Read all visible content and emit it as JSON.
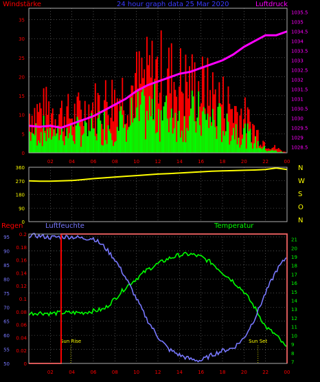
{
  "colors": {
    "background": "#000000",
    "axis": "#b0b0b0",
    "grid": "#808080",
    "wind_title": "#ff0000",
    "wind_gust": "#ff0000",
    "wind_avg": "#00ff00",
    "date_title": "#3a3aff",
    "pressure": "#ff00ff",
    "direction": "#ffff00",
    "rain": "#ff0000",
    "humidity": "#7878ff",
    "temperature": "#00ff00",
    "sun": "#ffff00",
    "dir_letters": "#ffff00"
  },
  "labels": {
    "wind": "Windstärke",
    "date": "24 hour graph data  25 Mar 2020",
    "pressure": "Luftdruck",
    "rain": "Regen",
    "humidity": "Luftfeuchte",
    "temperature": "Temperatur",
    "sun_rise": "Sun Rise",
    "sun_set": "Sun Set",
    "dir_n": "N",
    "dir_w": "W",
    "dir_s": "S",
    "dir_o": "O",
    "dir_n2": "N"
  },
  "chart_data": [
    {
      "type": "bar",
      "x_ticks": [
        "02",
        "04",
        "06",
        "08",
        "10",
        "12",
        "14",
        "16",
        "18",
        "20",
        "22",
        "00"
      ],
      "y_ticks_left": [
        0,
        5,
        10,
        15,
        20,
        25,
        30,
        35
      ],
      "y_ticks_right": [
        1028.5,
        1029,
        1029.5,
        1030,
        1030.5,
        1031,
        1031.5,
        1032,
        1032.5,
        1033,
        1033.5,
        1034,
        1034.5,
        1035,
        1035.5
      ],
      "wind_range": [
        0,
        38
      ],
      "pressure_range": [
        1028.2,
        1035.7
      ],
      "wind_hour_x": [
        0,
        2,
        4,
        6,
        8,
        10,
        12,
        14,
        16,
        18,
        20,
        22,
        24
      ],
      "wind_avg": [
        6,
        7,
        6,
        8,
        9,
        11,
        13,
        12,
        11,
        9,
        6,
        1,
        0
      ],
      "wind_gust": [
        13,
        14,
        12,
        15,
        18,
        22,
        26,
        23,
        21,
        17,
        12,
        3,
        0
      ],
      "pressure": {
        "x": [
          0,
          1,
          2,
          3,
          4,
          5,
          6,
          7,
          8,
          9,
          10,
          11,
          12,
          13,
          14,
          15,
          16,
          17,
          18,
          19,
          20,
          21,
          22,
          23,
          24
        ],
        "y": [
          1029.6,
          1029.55,
          1029.6,
          1029.5,
          1029.7,
          1029.9,
          1030.1,
          1030.4,
          1030.7,
          1031.0,
          1031.4,
          1031.7,
          1031.9,
          1032.1,
          1032.3,
          1032.4,
          1032.6,
          1032.8,
          1033.0,
          1033.3,
          1033.7,
          1034.0,
          1034.3,
          1034.3,
          1034.5
        ]
      }
    },
    {
      "type": "line",
      "y_ticks": [
        0,
        90,
        180,
        270,
        360
      ],
      "ylim": [
        0,
        360
      ],
      "x": [
        0,
        1,
        2,
        3,
        4,
        5,
        6,
        7,
        8,
        9,
        10,
        11,
        12,
        13,
        14,
        15,
        16,
        17,
        18,
        19,
        20,
        21,
        22,
        23,
        23.5,
        24
      ],
      "direction": [
        270,
        268,
        268,
        270,
        272,
        278,
        285,
        290,
        295,
        300,
        305,
        310,
        315,
        318,
        322,
        326,
        330,
        334,
        336,
        338,
        340,
        342,
        345,
        355,
        350,
        345
      ],
      "x_ticks": [
        "02",
        "04",
        "06",
        "08",
        "10",
        "12",
        "14",
        "16",
        "18",
        "20",
        "22",
        "00"
      ]
    },
    {
      "type": "line",
      "x_ticks": [
        "02",
        "04",
        "06",
        "08",
        "10",
        "12",
        "14",
        "16",
        "18",
        "20",
        "22",
        "00"
      ],
      "y_ticks_rain": [
        0,
        0.02,
        0.04,
        0.06,
        0.08,
        0.1,
        0.12,
        0.14,
        0.16,
        0.18,
        0.2
      ],
      "y_ticks_humidity": [
        50,
        55,
        60,
        65,
        70,
        75,
        80,
        85,
        90,
        95
      ],
      "y_ticks_temperature": [
        7,
        8,
        9,
        10,
        11,
        12,
        13,
        14,
        15,
        16,
        17,
        18,
        19,
        20,
        21
      ],
      "rain_range": [
        0,
        0.2
      ],
      "humidity_range": [
        50,
        96
      ],
      "temperature_range": [
        6.8,
        21.6
      ],
      "x": [
        0,
        1,
        2,
        3,
        4,
        5,
        6,
        7,
        8,
        9,
        10,
        11,
        12,
        13,
        14,
        15,
        16,
        17,
        18,
        19,
        20,
        21,
        22,
        23,
        24
      ],
      "rain": [
        0,
        0,
        0,
        0.2,
        0.2,
        0.2,
        0.2,
        0.2,
        0.2,
        0.2,
        0.2,
        0.2,
        0.2,
        0.2,
        0.2,
        0.2,
        0.2,
        0.2,
        0.2,
        0.2,
        0.2,
        0.2,
        0.2,
        0.2,
        0
      ],
      "humidity": [
        95.5,
        95.3,
        94.8,
        95.0,
        95.0,
        94.5,
        94.5,
        91.5,
        87.0,
        80.5,
        73.0,
        65.5,
        59.5,
        55.0,
        53.0,
        51.5,
        51.0,
        53.0,
        54.5,
        55.5,
        59.0,
        66.0,
        75.0,
        83.0,
        88.0
      ],
      "temperature": [
        12.5,
        12.6,
        12.5,
        12.6,
        12.6,
        12.6,
        12.8,
        13.0,
        14.2,
        15.5,
        16.5,
        17.5,
        18.2,
        18.8,
        19.2,
        19.3,
        19.0,
        18.3,
        17.2,
        16.2,
        15.0,
        13.2,
        11.0,
        10.0,
        8.5
      ],
      "sun_rise_hour": 3.9,
      "sun_set_hour": 21.3
    }
  ]
}
